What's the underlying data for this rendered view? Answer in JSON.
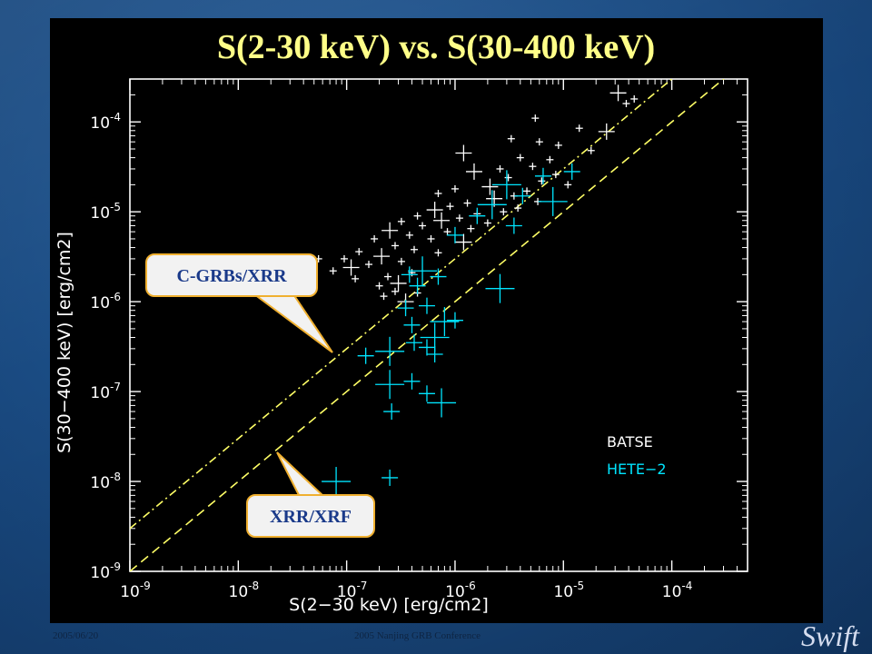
{
  "slide": {
    "footer_left": "2005/06/20",
    "footer_center": "2005 Nanjing GRB Conference",
    "logo_text": "Swift"
  },
  "colors": {
    "batse": "#ffffff",
    "hete2": "#00e5ff",
    "lines": "#ffff66",
    "callout_fill": "#f2f2f2",
    "callout_border": "#f0b030",
    "callout_text": "#1a3a8a"
  },
  "chart_data": {
    "type": "scatter",
    "title": "S(2-30 keV) vs. S(30-400 keV)",
    "xlabel": "S(2−30 keV) [erg/cm2]",
    "ylabel": "S(30−400 keV) [erg/cm2]",
    "xscale": "log",
    "yscale": "log",
    "xlim": [
      1e-09,
      0.0005
    ],
    "ylim": [
      1e-09,
      0.0003
    ],
    "x_ticks": [
      {
        "value": 1e-09,
        "label": "10^-9"
      },
      {
        "value": 1e-08,
        "label": "10^-8"
      },
      {
        "value": 1e-07,
        "label": "10^-7"
      },
      {
        "value": 1e-06,
        "label": "10^-6"
      },
      {
        "value": 1e-05,
        "label": "10^-5"
      },
      {
        "value": 0.0001,
        "label": "10^-4"
      }
    ],
    "y_ticks": [
      {
        "value": 1e-09,
        "label": "10^-9"
      },
      {
        "value": 1e-08,
        "label": "10^-8"
      },
      {
        "value": 1e-07,
        "label": "10^-7"
      },
      {
        "value": 1e-06,
        "label": "10^-6"
      },
      {
        "value": 1e-05,
        "label": "10^-5"
      },
      {
        "value": 0.0001,
        "label": "10^-4"
      }
    ],
    "legend": {
      "placement": "lower-right",
      "entries": [
        "BATSE",
        "HETE−2"
      ]
    },
    "lines": [
      {
        "name": "S(30-400) = 3 × S(2-30)",
        "style": "dash-dot",
        "ratio": 3
      },
      {
        "name": "S(30-400) = S(2-30)",
        "style": "dashed",
        "ratio": 1
      }
    ],
    "annotations": [
      {
        "text": "C-GRBs/XRR",
        "target": {
          "x": 8e-08,
          "y": 2.4e-07
        }
      },
      {
        "text": "XRR/XRF",
        "target": {
          "x": 2.2e-08,
          "y": 2.2e-08
        }
      }
    ],
    "series": [
      {
        "name": "BATSE",
        "points": [
          {
            "x": 3.2e-05,
            "y": 0.00021
          },
          {
            "x": 4.5e-05,
            "y": 0.00018
          },
          {
            "x": 3.8e-05,
            "y": 0.00016
          },
          {
            "x": 5.5e-06,
            "y": 0.00011
          },
          {
            "x": 1.4e-05,
            "y": 8.5e-05
          },
          {
            "x": 2.5e-05,
            "y": 7.8e-05
          },
          {
            "x": 3.3e-06,
            "y": 6.5e-05
          },
          {
            "x": 6e-06,
            "y": 6e-05
          },
          {
            "x": 9e-06,
            "y": 5.5e-05
          },
          {
            "x": 1.8e-05,
            "y": 4.8e-05
          },
          {
            "x": 1.2e-06,
            "y": 4.5e-05
          },
          {
            "x": 4e-06,
            "y": 4e-05
          },
          {
            "x": 7.5e-06,
            "y": 3.8e-05
          },
          {
            "x": 5.2e-06,
            "y": 3.2e-05
          },
          {
            "x": 2.6e-06,
            "y": 3e-05
          },
          {
            "x": 1.5e-06,
            "y": 2.8e-05
          },
          {
            "x": 8.5e-06,
            "y": 2.6e-05
          },
          {
            "x": 3.1e-06,
            "y": 2.4e-05
          },
          {
            "x": 6.3e-06,
            "y": 2.2e-05
          },
          {
            "x": 1.1e-05,
            "y": 2e-05
          },
          {
            "x": 2.1e-06,
            "y": 1.9e-05
          },
          {
            "x": 1e-06,
            "y": 1.8e-05
          },
          {
            "x": 4.6e-06,
            "y": 1.7e-05
          },
          {
            "x": 7e-07,
            "y": 1.6e-05
          },
          {
            "x": 3.5e-06,
            "y": 1.5e-05
          },
          {
            "x": 2.3e-06,
            "y": 1.4e-05
          },
          {
            "x": 5.8e-06,
            "y": 1.3e-05
          },
          {
            "x": 1.3e-06,
            "y": 1.25e-05
          },
          {
            "x": 9e-07,
            "y": 1.15e-05
          },
          {
            "x": 3.8e-06,
            "y": 1.1e-05
          },
          {
            "x": 6.5e-07,
            "y": 1.05e-05
          },
          {
            "x": 2.8e-06,
            "y": 1e-05
          },
          {
            "x": 1.6e-06,
            "y": 9.5e-06
          },
          {
            "x": 4.5e-07,
            "y": 9e-06
          },
          {
            "x": 1.1e-06,
            "y": 8.5e-06
          },
          {
            "x": 7.5e-07,
            "y": 8e-06
          },
          {
            "x": 3.2e-07,
            "y": 7.8e-06
          },
          {
            "x": 2e-06,
            "y": 7.5e-06
          },
          {
            "x": 5e-07,
            "y": 7e-06
          },
          {
            "x": 1.4e-06,
            "y": 6.5e-06
          },
          {
            "x": 2.5e-07,
            "y": 6.2e-06
          },
          {
            "x": 8.5e-07,
            "y": 6e-06
          },
          {
            "x": 3.8e-07,
            "y": 5.5e-06
          },
          {
            "x": 6e-07,
            "y": 5e-06
          },
          {
            "x": 1.8e-07,
            "y": 5e-06
          },
          {
            "x": 1.2e-06,
            "y": 4.6e-06
          },
          {
            "x": 2.8e-07,
            "y": 4.2e-06
          },
          {
            "x": 4.2e-07,
            "y": 3.8e-06
          },
          {
            "x": 1.3e-07,
            "y": 3.6e-06
          },
          {
            "x": 7e-07,
            "y": 3.5e-06
          },
          {
            "x": 2.1e-07,
            "y": 3.2e-06
          },
          {
            "x": 9.5e-08,
            "y": 3e-06
          },
          {
            "x": 5.5e-08,
            "y": 3e-06
          },
          {
            "x": 3.2e-07,
            "y": 2.8e-06
          },
          {
            "x": 1.6e-07,
            "y": 2.6e-06
          },
          {
            "x": 1.1e-07,
            "y": 2.4e-06
          },
          {
            "x": 7.5e-08,
            "y": 2.2e-06
          },
          {
            "x": 4e-07,
            "y": 2.1e-06
          },
          {
            "x": 2.4e-07,
            "y": 1.9e-06
          },
          {
            "x": 1.2e-07,
            "y": 1.8e-06
          },
          {
            "x": 3e-07,
            "y": 1.6e-06
          },
          {
            "x": 2e-07,
            "y": 1.5e-06
          },
          {
            "x": 2.8e-07,
            "y": 1.3e-06
          },
          {
            "x": 4.5e-07,
            "y": 1.25e-06
          },
          {
            "x": 2.2e-07,
            "y": 1.15e-06
          },
          {
            "x": 3.5e-07,
            "y": 1e-06
          }
        ]
      },
      {
        "name": "HETE−2",
        "points": [
          {
            "x": 3e-06,
            "y": 2e-05
          },
          {
            "x": 4.2e-06,
            "y": 1.5e-05
          },
          {
            "x": 6.5e-06,
            "y": 2.5e-05
          },
          {
            "x": 2.2e-06,
            "y": 1.2e-05
          },
          {
            "x": 1.2e-05,
            "y": 2.8e-05
          },
          {
            "x": 1.6e-06,
            "y": 9e-06
          },
          {
            "x": 8e-06,
            "y": 1.3e-05
          },
          {
            "x": 1e-06,
            "y": 5.5e-06
          },
          {
            "x": 3.5e-06,
            "y": 7e-06
          },
          {
            "x": 5e-07,
            "y": 2.2e-06
          },
          {
            "x": 4.5e-07,
            "y": 1.5e-06
          },
          {
            "x": 7e-07,
            "y": 1.9e-06
          },
          {
            "x": 2.6e-06,
            "y": 1.4e-06
          },
          {
            "x": 3.5e-07,
            "y": 8.5e-07
          },
          {
            "x": 5.5e-07,
            "y": 9e-07
          },
          {
            "x": 8e-07,
            "y": 6e-07
          },
          {
            "x": 1e-06,
            "y": 6.2e-07
          },
          {
            "x": 4e-07,
            "y": 5.5e-07
          },
          {
            "x": 6.5e-07,
            "y": 4e-07
          },
          {
            "x": 4.2e-07,
            "y": 3.5e-07
          },
          {
            "x": 5.5e-07,
            "y": 3.1e-07
          },
          {
            "x": 2.5e-07,
            "y": 2.8e-07
          },
          {
            "x": 6.5e-07,
            "y": 2.6e-07
          },
          {
            "x": 4e-07,
            "y": 1.3e-07
          },
          {
            "x": 2.5e-07,
            "y": 1.2e-07
          },
          {
            "x": 5.5e-07,
            "y": 9.5e-08
          },
          {
            "x": 2.6e-07,
            "y": 6e-08
          },
          {
            "x": 7.5e-07,
            "y": 7.5e-08
          },
          {
            "x": 1.5e-07,
            "y": 2.5e-07
          },
          {
            "x": 3.8e-07,
            "y": 2e-06
          },
          {
            "x": 8e-08,
            "y": 1e-08
          },
          {
            "x": 2.5e-07,
            "y": 1.1e-08
          }
        ]
      }
    ]
  }
}
